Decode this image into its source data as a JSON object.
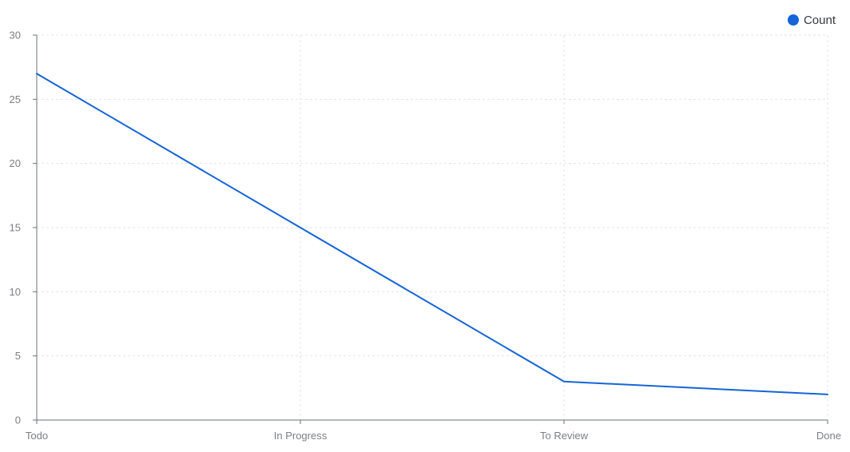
{
  "chart_data": {
    "type": "line",
    "title": "",
    "xlabel": "",
    "ylabel": "",
    "categories": [
      "Todo",
      "In Progress",
      "To Review",
      "Done"
    ],
    "series": [
      {
        "name": "Count",
        "values": [
          27,
          15,
          3,
          2
        ],
        "color": "#1565d8"
      }
    ],
    "ylim": [
      0,
      30
    ],
    "yticks": [
      0,
      5,
      10,
      15,
      20,
      25,
      30
    ],
    "grid": true,
    "legend": {
      "placement": "top-right",
      "marker": "circle"
    }
  }
}
